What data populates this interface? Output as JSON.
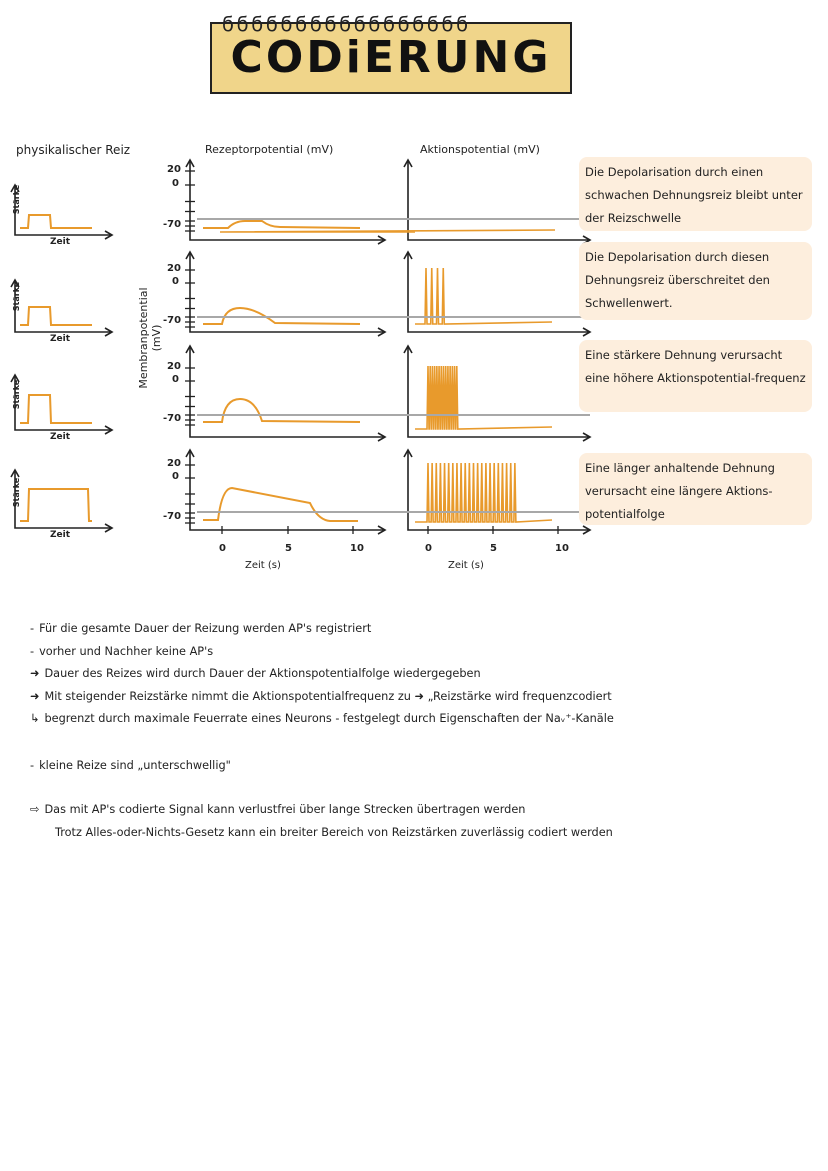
{
  "title": {
    "text": "CODiERUNG",
    "spirals": "ϭϭϭϭϭϭϭϭϭϭϭϭϭϭϭϭϭ"
  },
  "headers": {
    "stimulus": "physikalischer Reiz",
    "receptor": "Rezeptorpotential (mV)",
    "action": "Aktionspotential (mV)",
    "membrane_axis": "Membranpotential (mV)"
  },
  "stimulus_axes": {
    "y_label": "Stärke",
    "x_label": "Zeit"
  },
  "ticks": {
    "y_20": "20",
    "y_0": "0",
    "y_m70": "-70",
    "x": [
      "0",
      "5",
      "10"
    ],
    "x_label": "Zeit (s)"
  },
  "notes": [
    "Die Depolarisation durch einen schwachen Dehnungsreiz bleibt unter der Reizschwelle",
    "Die Depolarisation durch diesen Dehnungsreiz überschreitet den Schwellenwert.",
    "Eine stärkere Dehnung verursacht eine höhere Aktionspotential-frequenz",
    "Eine länger anhaltende Dehnung verursacht eine längere Aktions-potentialfolge"
  ],
  "bullets": [
    {
      "marker": "-",
      "text": "Für die gesamte Dauer der Reizung werden AP's registriert"
    },
    {
      "marker": "-",
      "text": "vorher und Nachher keine AP's"
    },
    {
      "marker": "➜",
      "text": "Dauer des Reizes wird durch Dauer der Aktionspotentialfolge wiedergegeben"
    },
    {
      "marker": "➜",
      "text": "Mit steigender Reizstärke nimmt die Aktionspotentialfrequenz zu  ➜ „Reizstärke wird frequenzcodiert"
    },
    {
      "marker": "↳",
      "text": "begrenzt durch maximale Feuerrate eines Neurons - festgelegt durch Eigenschaften der Naᵥ⁺-Kanäle"
    },
    {
      "marker": "-",
      "text": "kleine Reize sind „unterschwellig\""
    },
    {
      "marker": "⇨",
      "text": "Das mit AP's codierte Signal kann verlustfrei über lange Strecken übertragen werden"
    },
    {
      "marker": "",
      "text": "Trotz Alles-oder-Nichts-Gesetz kann ein breiter Bereich von Reizstärken zuverlässig codiert werden"
    }
  ],
  "colors": {
    "trace": "#e89a2c",
    "threshold": "#a8a8a8",
    "banner": "#f0d58a",
    "note_bg": "#fdeedd"
  }
}
